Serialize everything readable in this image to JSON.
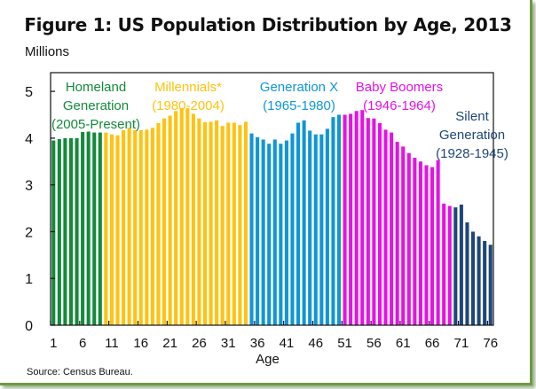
{
  "chart_data": {
    "type": "bar",
    "title": "Figure 1: US Population Distribution by Age, 2013",
    "ylabel": "Millions",
    "xlabel": "Age",
    "source": "Source: Census Bureau.",
    "ylim": [
      0,
      5.4
    ],
    "yticks": [
      0,
      1,
      2,
      3,
      4,
      5
    ],
    "xticks": [
      1,
      6,
      11,
      16,
      21,
      26,
      31,
      36,
      41,
      46,
      51,
      56,
      61,
      66,
      71,
      76
    ],
    "grid": false,
    "ages_start": 1,
    "values": [
      3.95,
      3.98,
      4.0,
      4.0,
      4.0,
      4.13,
      4.14,
      4.12,
      4.12,
      4.12,
      4.08,
      4.06,
      4.17,
      4.22,
      4.17,
      4.17,
      4.18,
      4.22,
      4.32,
      4.42,
      4.48,
      4.58,
      4.64,
      4.64,
      4.52,
      4.42,
      4.34,
      4.35,
      4.38,
      4.26,
      4.33,
      4.33,
      4.28,
      4.35,
      4.1,
      4.02,
      3.97,
      3.88,
      3.97,
      3.88,
      3.95,
      4.1,
      4.33,
      4.38,
      4.16,
      4.08,
      4.08,
      4.2,
      4.45,
      4.5,
      4.5,
      4.52,
      4.58,
      4.6,
      4.43,
      4.42,
      4.32,
      4.18,
      4.12,
      3.92,
      3.82,
      3.68,
      3.58,
      3.5,
      3.42,
      3.38,
      3.53,
      2.6,
      2.55,
      2.52,
      2.58,
      2.2,
      2.0,
      1.9,
      1.8,
      1.72
    ],
    "series": [
      {
        "name": "Homeland Generation",
        "years": "(2005-Present)",
        "age_from": 1,
        "age_to": 9,
        "color": "#138a3a"
      },
      {
        "name": "Millennials*",
        "years": "(1980-2004)",
        "age_from": 10,
        "age_to": 34,
        "color": "#ffc20e"
      },
      {
        "name": "Generation X",
        "years": "(1965-1980)",
        "age_from": 35,
        "age_to": 50,
        "color": "#0f96d8"
      },
      {
        "name": "Baby Boomers",
        "years": "(1946-1964)",
        "age_from": 51,
        "age_to": 69,
        "color": "#e512e5"
      },
      {
        "name": "Silent Generation",
        "years": "(1928-1945)",
        "age_from": 70,
        "age_to": 76,
        "color": "#1f4678"
      }
    ],
    "annotations": {
      "homeland": [
        "Homeland",
        "Generation",
        "(2005-Present)"
      ],
      "millennials": [
        "Millennials*",
        "(1980-2004)"
      ],
      "genx": [
        "Generation X",
        "(1965-1980)"
      ],
      "boomers": [
        "Baby Boomers",
        "(1946-1964)"
      ],
      "silent": [
        "Silent",
        "Generation",
        "(1928-1945)"
      ]
    }
  }
}
